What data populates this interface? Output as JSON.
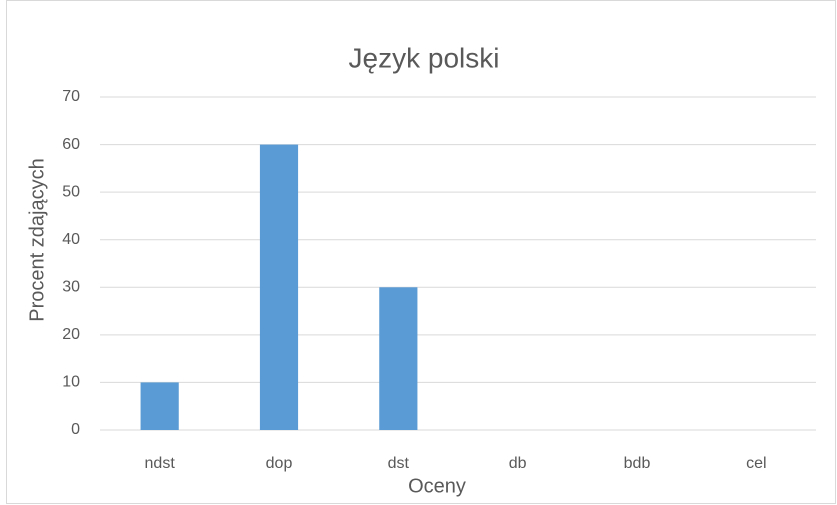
{
  "chart_data": {
    "type": "bar",
    "title": "Język polski",
    "x_label": "Oceny",
    "y_label": "Procent zdających",
    "categories": [
      "ndst",
      "dop",
      "dst",
      "db",
      "bdb",
      "cel"
    ],
    "values": [
      10,
      60,
      30,
      0,
      0,
      0
    ],
    "color": "#5b9bd5",
    "ylim": [
      0,
      70
    ],
    "yticks": [
      0,
      10,
      20,
      30,
      40,
      50,
      60,
      70
    ],
    "grid": true
  }
}
